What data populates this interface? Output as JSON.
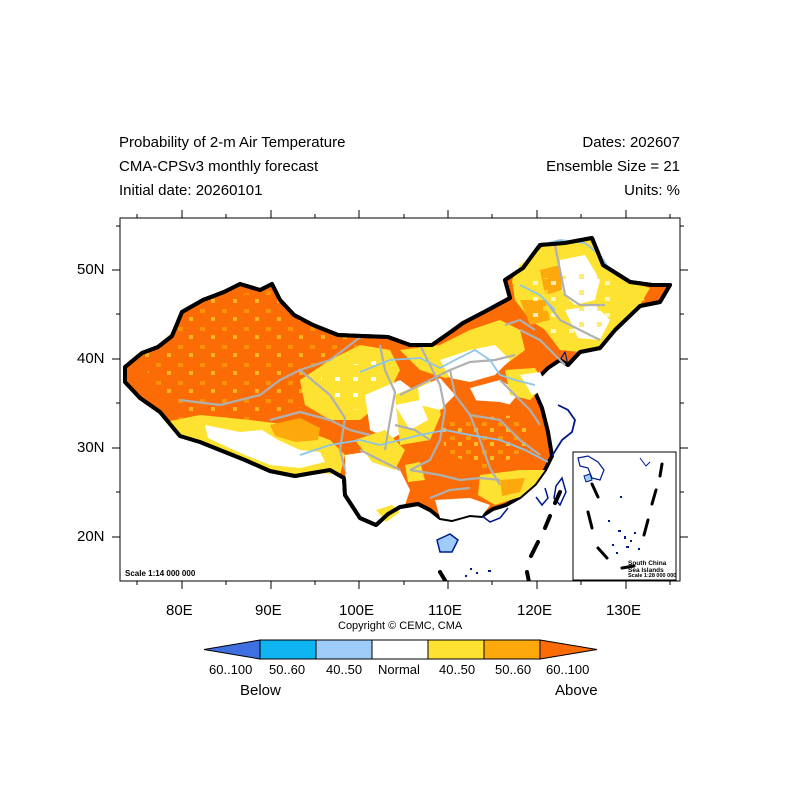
{
  "header": {
    "title_line1": "Probability of 2-m Air Temperature",
    "title_line2": "CMA-CPSv3 monthly forecast",
    "title_line3": "Initial date: 20260101",
    "right_line1": "Dates: 202607",
    "right_line2": "Ensemble Size = 21",
    "right_line3": "Units: %"
  },
  "axes": {
    "lat_labels": [
      "50N",
      "40N",
      "30N",
      "20N"
    ],
    "lon_labels": [
      "80E",
      "90E",
      "100E",
      "110E",
      "120E",
      "130E"
    ]
  },
  "map": {
    "scale_main": "Scale 1:14 000 000",
    "inset_line1": "South China",
    "inset_line2": "Sea Islands",
    "inset_scale": "Scale 1:28 000 000",
    "copyright": "Copyright © CEMC, CMA"
  },
  "legend": {
    "colors": [
      "#3f6fe0",
      "#0fb5f0",
      "#9ecbf7",
      "#ffffff",
      "#fde232",
      "#fda80b",
      "#fb6c06"
    ],
    "labels": [
      "60..100",
      "50..60",
      "40..50",
      "Normal",
      "40..50",
      "50..60",
      "60..100"
    ],
    "below": "Below",
    "above": "Above"
  }
}
